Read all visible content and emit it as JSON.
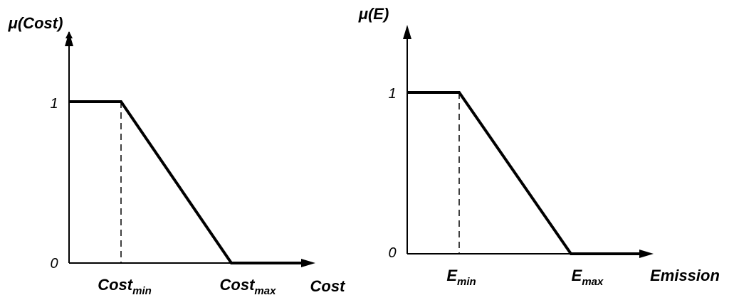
{
  "panels": [
    {
      "y_label": "μ(Cost)",
      "x_label": "Cost",
      "y_ticks": [
        "1",
        "0"
      ],
      "x_ticks": [
        {
          "base": "Cost",
          "sub": "min"
        },
        {
          "base": "Cost",
          "sub": "max"
        }
      ]
    },
    {
      "y_label": "μ(E)",
      "x_label": "Emission",
      "y_ticks": [
        "1",
        "0"
      ],
      "x_ticks": [
        {
          "base": "E",
          "sub": "min"
        },
        {
          "base": "E",
          "sub": "max"
        }
      ]
    }
  ]
}
